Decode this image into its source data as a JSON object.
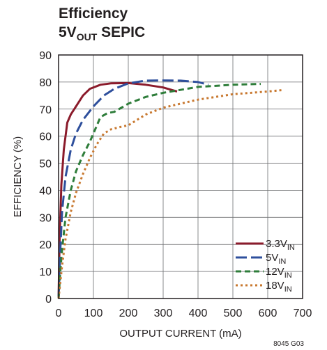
{
  "chart_data": {
    "type": "line",
    "title_line1": "Efficiency",
    "title_line2_main": "5V",
    "title_line2_sub": "OUT",
    "title_line2_rest": " SEPIC",
    "xlabel": "OUTPUT CURRENT (mA)",
    "ylabel": "EFFICIENCY (%)",
    "xlim": [
      0,
      700
    ],
    "ylim": [
      0,
      90
    ],
    "x_ticks": [
      "0",
      "100",
      "200",
      "300",
      "400",
      "500",
      "600",
      "700"
    ],
    "y_ticks": [
      "0",
      "10",
      "20",
      "30",
      "40",
      "50",
      "60",
      "70",
      "80",
      "90"
    ],
    "grid": true,
    "legend_position": "bottom-right",
    "figure_note": "8045 G03",
    "series": [
      {
        "name_main": "3.3V",
        "name_sub": "IN",
        "color": "#8b1b2b",
        "dash": "solid",
        "x": [
          0,
          3,
          8,
          15,
          25,
          35,
          50,
          70,
          90,
          120,
          150,
          200,
          250,
          300,
          340
        ],
        "y": [
          0,
          22,
          42,
          55,
          65,
          68,
          71,
          75,
          77.5,
          79,
          79.5,
          79.6,
          79,
          78,
          76.5
        ]
      },
      {
        "name_main": "5V",
        "name_sub": "IN",
        "color": "#2e4f9c",
        "dash": "long-dash",
        "x": [
          0,
          5,
          10,
          20,
          35,
          50,
          70,
          100,
          130,
          160,
          200,
          250,
          300,
          350,
          400,
          430
        ],
        "y": [
          0,
          18,
          32,
          45,
          55,
          61,
          66,
          71,
          75,
          77.5,
          79.5,
          80.5,
          80.6,
          80.5,
          80,
          79
        ]
      },
      {
        "name_main": "12V",
        "name_sub": "IN",
        "color": "#2e7d3a",
        "dash": "dash",
        "x": [
          0,
          5,
          10,
          20,
          35,
          50,
          70,
          90,
          100,
          110,
          120,
          140,
          160,
          200,
          250,
          300,
          400,
          500,
          580
        ],
        "y": [
          0,
          10,
          18,
          30,
          40,
          47,
          53,
          58,
          61,
          64,
          67,
          68.5,
          69,
          72,
          74.5,
          76,
          78.2,
          79,
          79.3
        ]
      },
      {
        "name_main": "18V",
        "name_sub": "IN",
        "color": "#c8782f",
        "dash": "dot",
        "x": [
          0,
          5,
          10,
          20,
          35,
          50,
          70,
          90,
          110,
          130,
          150,
          180,
          200,
          250,
          300,
          400,
          500,
          600,
          640
        ],
        "y": [
          0,
          6,
          12,
          22,
          32,
          39,
          46,
          52,
          57,
          61,
          62.5,
          63.5,
          64,
          68,
          70.5,
          73.5,
          75.5,
          76.5,
          77
        ]
      }
    ]
  }
}
